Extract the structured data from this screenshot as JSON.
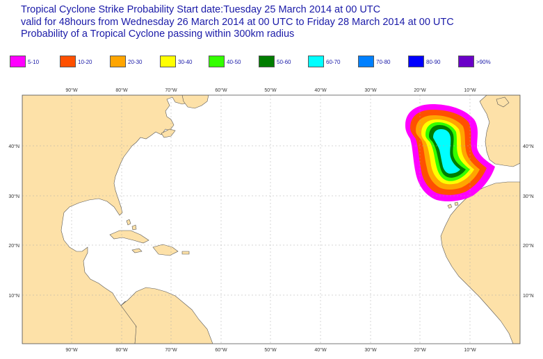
{
  "title": {
    "line1": "Tropical Cyclone Strike Probability Start date:Tuesday 25 March 2014 at 00 UTC",
    "line2": "valid for 48hours from Wednesday 26 March 2014 at 00 UTC to  Friday 28 March 2014 at 00 UTC",
    "line3": "Probability of a Tropical Cyclone passing within 300km radius"
  },
  "legend": [
    {
      "label": "5-10",
      "color": "#ff00ff"
    },
    {
      "label": "10-20",
      "color": "#ff5000"
    },
    {
      "label": "20-30",
      "color": "#ffa500"
    },
    {
      "label": "30-40",
      "color": "#ffff00"
    },
    {
      "label": "40-50",
      "color": "#33ff00"
    },
    {
      "label": "50-60",
      "color": "#007d00"
    },
    {
      "label": "60-70",
      "color": "#00ffff"
    },
    {
      "label": "70-80",
      "color": "#0080ff"
    },
    {
      "label": "80-90",
      "color": "#0000ff"
    },
    {
      "label": ">90%",
      "color": "#6a00c8"
    }
  ],
  "map": {
    "land_color": "#fde1a8",
    "ocean_color": "#ffffff",
    "lon_labels": [
      "90°W",
      "80°W",
      "70°W",
      "60°W",
      "50°W",
      "40°W",
      "30°W",
      "20°W",
      "10°W"
    ],
    "lat_labels": [
      "40°N",
      "30°N",
      "20°N",
      "10°N"
    ]
  }
}
